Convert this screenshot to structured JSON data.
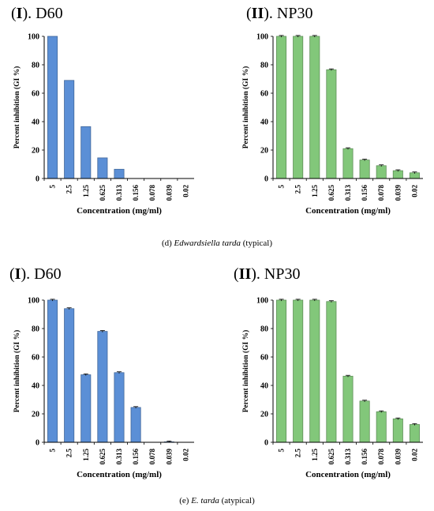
{
  "figure": {
    "caption_d": {
      "prefix": "(d) ",
      "species": "Edwardsiella tarda",
      "suffix": " (typical)"
    },
    "caption_e": {
      "prefix": "(e) ",
      "species": "E. tarda",
      "suffix": " (atypical)"
    }
  },
  "panels": [
    {
      "roman": "I",
      "name": "D60"
    },
    {
      "roman": "II",
      "name": "NP30"
    },
    {
      "roman": "I",
      "name": "D60"
    },
    {
      "roman": "II",
      "name": "NP30"
    }
  ],
  "chart_data": [
    {
      "type": "bar",
      "title": "(I). D60",
      "xlabel": "Concentration (mg/ml)",
      "ylabel": "Percent inhibition (GI %)",
      "categories": [
        "5",
        "2.5",
        "1.25",
        "0.625",
        "0.313",
        "0.156",
        "0.078",
        "0.039",
        "0.02"
      ],
      "values": [
        100,
        69,
        36.5,
        14.5,
        6.5,
        0,
        0,
        0,
        0
      ],
      "ylim": [
        0,
        100
      ],
      "yticks": [
        0,
        20,
        40,
        60,
        80,
        100
      ],
      "color": "#5b8fd6",
      "error_bars": false,
      "grid": false
    },
    {
      "type": "bar",
      "title": "(II). NP30",
      "xlabel": "Concentration (mg/ml)",
      "ylabel": "Percent inhibition (GI %)",
      "categories": [
        "5",
        "2.5",
        "1.25",
        "0.625",
        "0.313",
        "0.156",
        "0.078",
        "0.039",
        "0.02"
      ],
      "values": [
        100,
        100,
        100,
        76.5,
        21,
        13,
        9,
        5.5,
        4
      ],
      "ylim": [
        0,
        100
      ],
      "yticks": [
        0,
        20,
        40,
        60,
        80,
        100
      ],
      "color": "#82c77a",
      "error_bars": true,
      "grid": false
    },
    {
      "type": "bar",
      "title": "(I). D60",
      "xlabel": "Concentration (mg/ml)",
      "ylabel": "Percent inhibition (GI %)",
      "categories": [
        "5",
        "2.5",
        "1.25",
        "0.625",
        "0.313",
        "0.156",
        "0.078",
        "0.039",
        "0.02"
      ],
      "values": [
        100,
        94,
        47.5,
        78,
        49,
        24.5,
        0,
        0.3,
        0
      ],
      "ylim": [
        0,
        100
      ],
      "yticks": [
        0,
        20,
        40,
        60,
        80,
        100
      ],
      "color": "#5b8fd6",
      "error_bars": true,
      "grid": false
    },
    {
      "type": "bar",
      "title": "(II). NP30",
      "xlabel": "Concentration (mg/ml)",
      "ylabel": "Percent inhibition (GI %)",
      "categories": [
        "5",
        "2.5",
        "1.25",
        "0.625",
        "0.313",
        "0.156",
        "0.078",
        "0.039",
        "0.02"
      ],
      "values": [
        100,
        100,
        100,
        99,
        46.5,
        29,
        21.5,
        16.5,
        12.5
      ],
      "ylim": [
        0,
        100
      ],
      "yticks": [
        0,
        20,
        40,
        60,
        80,
        100
      ],
      "color": "#82c77a",
      "error_bars": true,
      "grid": false
    }
  ]
}
